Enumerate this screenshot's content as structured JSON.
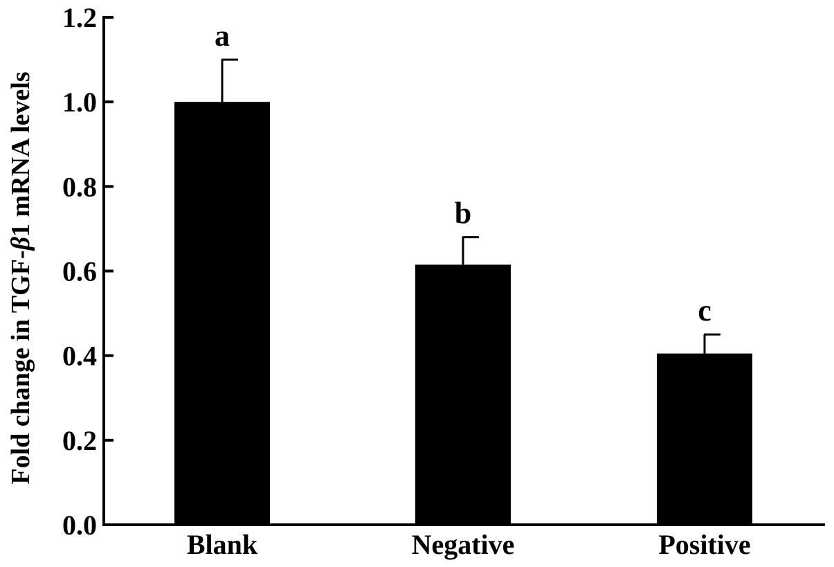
{
  "chart_data": {
    "type": "bar",
    "categories": [
      "Blank",
      "Negative",
      "Positive"
    ],
    "values": [
      1.0,
      0.615,
      0.405
    ],
    "errors": [
      0.1,
      0.065,
      0.045
    ],
    "significance_labels": [
      "a",
      "b",
      "c"
    ],
    "ylabel_prefix": "Fold change in TGF-",
    "ylabel_greek": "β",
    "ylabel_suffix": "1 mRNA levels",
    "xlabel": "",
    "ylim": [
      0,
      1.2
    ],
    "yticks": [
      0.0,
      0.2,
      0.4,
      0.6,
      0.8,
      1.0,
      1.2
    ],
    "ytick_labels": [
      "0.0",
      "0.2",
      "0.4",
      "0.6",
      "0.8",
      "1.0",
      "1.2"
    ],
    "grid": false,
    "bar_color": "#000000"
  }
}
